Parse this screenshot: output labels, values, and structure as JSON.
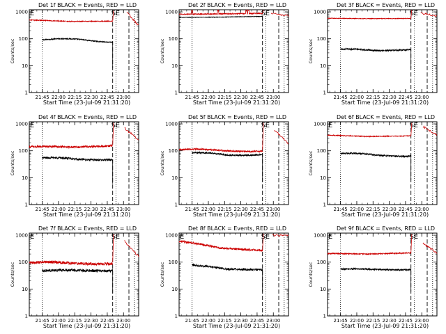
{
  "chart_data": [
    {
      "type": "line",
      "title": "Det 1f BLACK = Events, RED = LLD",
      "xlabel": "Start Time (23-Jul-09 21:31:20)",
      "ylabel": "Counts/sec",
      "xticks": [
        "21:45",
        "22:00",
        "22:15",
        "22:30",
        "22:45",
        "23:00"
      ],
      "yticks": [
        "1",
        "10",
        "100",
        "1000"
      ],
      "ylog": true,
      "ylim": [
        1,
        1200
      ],
      "xlim_minutes": [
        0,
        101
      ],
      "events": [
        {
          "label": "E",
          "t": 0
        },
        {
          "label": "S",
          "t": 75
        },
        {
          "label": "E",
          "t": 79
        }
      ],
      "dotted_lines": [
        12,
        80,
        97
      ],
      "dashed_lines": [
        77,
        92
      ],
      "series": [
        {
          "name": "Events",
          "color": "#000000",
          "t_range": [
            12,
            77
          ],
          "start": 90,
          "mid": 90,
          "end": 85,
          "noise": 0.02,
          "hump": 0.12,
          "drop_to": 8
        },
        {
          "name": "LLD",
          "color": "#cc0000",
          "t_range": [
            0,
            77
          ],
          "start": 500,
          "mid": 440,
          "end": 450,
          "noise": 0.015,
          "hump": 0.0,
          "spike": 1100,
          "tail": [
            90,
            101,
            1000,
            300
          ]
        }
      ]
    },
    {
      "type": "line",
      "title": "Det 2f BLACK = Events, RED = LLD",
      "xlabel": "Start Time (23-Jul-09 21:31:20)",
      "ylabel": "Counts/sec",
      "xticks": [
        "21:45",
        "22:00",
        "22:15",
        "22:30",
        "22:45",
        "23:00"
      ],
      "yticks": [
        "1",
        "10",
        "100",
        "1000"
      ],
      "ylog": true,
      "ylim": [
        1,
        1200
      ],
      "xlim_minutes": [
        0,
        101
      ],
      "events": [
        {
          "label": "S",
          "t": 75
        },
        {
          "label": "E",
          "t": 79
        }
      ],
      "dotted_lines": [
        12,
        80,
        97
      ],
      "dashed_lines": [
        77,
        92
      ],
      "series": [
        {
          "name": "Events",
          "color": "#000000",
          "t_range": [
            0,
            77
          ],
          "start": 620,
          "mid": 640,
          "end": 680,
          "noise": 0.01,
          "hump": 0.0,
          "drop_to": 450
        },
        {
          "name": "LLD",
          "color": "#cc0000",
          "t_range": [
            0,
            77
          ],
          "start": 820,
          "mid": 840,
          "end": 880,
          "noise": 0.02,
          "hump": 0.0,
          "spike": 1200,
          "tail": [
            85,
            101,
            900,
            700
          ],
          "bumps": [
            12,
            36,
            62,
            64
          ]
        }
      ]
    },
    {
      "type": "line",
      "title": "Det 3f BLACK = Events, RED = LLD",
      "xlabel": "Start Time (23-Jul-09 21:31:20)",
      "ylabel": "Counts/sec",
      "xticks": [
        "21:45",
        "22:00",
        "22:15",
        "22:30",
        "22:45",
        "23:00"
      ],
      "yticks": [
        "1",
        "10",
        "100",
        "1000"
      ],
      "ylog": true,
      "ylim": [
        1,
        1200
      ],
      "xlim_minutes": [
        0,
        101
      ],
      "events": [
        {
          "label": "S",
          "t": 75
        },
        {
          "label": "E",
          "t": 79
        }
      ],
      "dotted_lines": [
        12,
        80,
        97
      ],
      "dashed_lines": [
        77,
        92
      ],
      "series": [
        {
          "name": "Events",
          "color": "#000000",
          "t_range": [
            12,
            77
          ],
          "start": 42,
          "mid": 35,
          "end": 42,
          "noise": 0.03,
          "hump": 0.05,
          "drop_to": 8
        },
        {
          "name": "LLD",
          "color": "#cc0000",
          "t_range": [
            0,
            77
          ],
          "start": 580,
          "mid": 560,
          "end": 570,
          "noise": 0.01,
          "hump": 0.0,
          "spike": 1200,
          "tail": [
            86,
            101,
            900,
            700
          ]
        }
      ]
    },
    {
      "type": "line",
      "title": "Det 4f BLACK = Events, RED = LLD",
      "xlabel": "Start Time (23-Jul-09 21:31:20)",
      "ylabel": "Counts/sec",
      "xticks": [
        "21:45",
        "22:00",
        "22:15",
        "22:30",
        "22:45",
        "23:00"
      ],
      "yticks": [
        "1",
        "10",
        "100",
        "1000"
      ],
      "ylog": true,
      "ylim": [
        1,
        1200
      ],
      "xlim_minutes": [
        0,
        101
      ],
      "events": [
        {
          "label": "E",
          "t": 0
        },
        {
          "label": "S",
          "t": 75
        },
        {
          "label": "E",
          "t": 79
        }
      ],
      "dotted_lines": [
        12,
        80,
        97
      ],
      "dashed_lines": [
        77,
        92
      ],
      "series": [
        {
          "name": "Events",
          "color": "#000000",
          "t_range": [
            12,
            77
          ],
          "start": 55,
          "mid": 45,
          "end": 52,
          "noise": 0.04,
          "hump": 0.1,
          "drop_to": 6
        },
        {
          "name": "LLD",
          "color": "#cc0000",
          "t_range": [
            0,
            77
          ],
          "start": 140,
          "mid": 130,
          "end": 170,
          "noise": 0.04,
          "hump": 0.08,
          "spike": 1100,
          "tail": [
            88,
            101,
            700,
            250
          ]
        }
      ]
    },
    {
      "type": "line",
      "title": "Det 5f BLACK = Events, RED = LLD",
      "xlabel": "Start Time (23-Jul-09 21:31:20)",
      "ylabel": "Counts/sec",
      "xticks": [
        "21:45",
        "22:00",
        "22:15",
        "22:30",
        "22:45",
        "23:00"
      ],
      "yticks": [
        "1",
        "10",
        "100",
        "1000"
      ],
      "ylog": true,
      "ylim": [
        1,
        1200
      ],
      "xlim_minutes": [
        0,
        101
      ],
      "events": [
        {
          "label": "S",
          "t": 75
        },
        {
          "label": "E",
          "t": 79
        }
      ],
      "dotted_lines": [
        12,
        80,
        97
      ],
      "dashed_lines": [
        77,
        92
      ],
      "series": [
        {
          "name": "Events",
          "color": "#000000",
          "t_range": [
            12,
            77
          ],
          "start": 85,
          "mid": 65,
          "end": 80,
          "noise": 0.03,
          "hump": 0.1,
          "drop_to": 7
        },
        {
          "name": "LLD",
          "color": "#cc0000",
          "t_range": [
            0,
            77
          ],
          "start": 110,
          "mid": 95,
          "end": 110,
          "noise": 0.03,
          "hump": 0.12,
          "spike": 1100,
          "tail": [
            88,
            101,
            600,
            180
          ]
        }
      ]
    },
    {
      "type": "line",
      "title": "Det 6f BLACK = Events, RED = LLD",
      "xlabel": "Start Time (23-Jul-09 21:31:20)",
      "ylabel": "Counts/sec",
      "xticks": [
        "21:45",
        "22:00",
        "22:15",
        "22:30",
        "22:45",
        "23:00"
      ],
      "yticks": [
        "1",
        "10",
        "100",
        "1000"
      ],
      "ylog": true,
      "ylim": [
        1,
        1200
      ],
      "xlim_minutes": [
        0,
        101
      ],
      "events": [
        {
          "label": "E",
          "t": 0
        },
        {
          "label": "S",
          "t": 75
        },
        {
          "label": "E",
          "t": 79
        }
      ],
      "dotted_lines": [
        12,
        80,
        97
      ],
      "dashed_lines": [
        77,
        92
      ],
      "series": [
        {
          "name": "Events",
          "color": "#000000",
          "t_range": [
            12,
            77
          ],
          "start": 80,
          "mid": 65,
          "end": 70,
          "noise": 0.03,
          "hump": 0.1,
          "drop_to": 8
        },
        {
          "name": "LLD",
          "color": "#cc0000",
          "t_range": [
            0,
            77
          ],
          "start": 380,
          "mid": 340,
          "end": 360,
          "noise": 0.015,
          "hump": 0.0,
          "spike": 1100,
          "tail": [
            88,
            101,
            800,
            400
          ]
        }
      ]
    },
    {
      "type": "line",
      "title": "Det 7f BLACK = Events, RED = LLD",
      "xlabel": "Start Time (23-Jul-09 21:31:20)",
      "ylabel": "Counts/sec",
      "xticks": [
        "21:45",
        "22:00",
        "22:15",
        "22:30",
        "22:45",
        "23:00"
      ],
      "yticks": [
        "1",
        "10",
        "100",
        "1000"
      ],
      "ylog": true,
      "ylim": [
        1,
        1200
      ],
      "xlim_minutes": [
        0,
        101
      ],
      "events": [
        {
          "label": "E",
          "t": 0
        },
        {
          "label": "S",
          "t": 75
        },
        {
          "label": "E",
          "t": 79
        }
      ],
      "dotted_lines": [
        12,
        80,
        97
      ],
      "dashed_lines": [
        77,
        92
      ],
      "series": [
        {
          "name": "Events",
          "color": "#000000",
          "t_range": [
            12,
            77
          ],
          "start": 48,
          "mid": 48,
          "end": 50,
          "noise": 0.05,
          "hump": 0.05,
          "drop_to": 7
        },
        {
          "name": "LLD",
          "color": "#cc0000",
          "t_range": [
            0,
            77
          ],
          "start": 95,
          "mid": 85,
          "end": 100,
          "noise": 0.05,
          "hump": 0.12,
          "spike": 1100,
          "tail": [
            88,
            101,
            600,
            160
          ]
        }
      ]
    },
    {
      "type": "line",
      "title": "Det 8f BLACK = Events, RED = LLD",
      "xlabel": "Start Time (23-Jul-09 21:31:20)",
      "ylabel": "Counts/sec",
      "xticks": [
        "21:45",
        "22:00",
        "22:15",
        "22:30",
        "22:45",
        "23:00"
      ],
      "yticks": [
        "1",
        "10",
        "100",
        "1000"
      ],
      "ylog": true,
      "ylim": [
        1,
        1200
      ],
      "xlim_minutes": [
        0,
        101
      ],
      "events": [
        {
          "label": "E",
          "t": 0
        },
        {
          "label": "S",
          "t": 75
        },
        {
          "label": "E",
          "t": 79
        }
      ],
      "dotted_lines": [
        12,
        80,
        97
      ],
      "dashed_lines": [
        77,
        92
      ],
      "series": [
        {
          "name": "Events",
          "color": "#000000",
          "t_range": [
            12,
            77
          ],
          "start": 80,
          "mid": 55,
          "end": 52,
          "noise": 0.04,
          "hump": 0.0,
          "drop_to": 8
        },
        {
          "name": "LLD",
          "color": "#cc0000",
          "t_range": [
            0,
            77
          ],
          "start": 600,
          "mid": 330,
          "end": 270,
          "noise": 0.04,
          "hump": 0.0,
          "spike": 1150,
          "tail": [
            86,
            101,
            1000,
            1000
          ]
        }
      ]
    },
    {
      "type": "line",
      "title": "Det 9f BLACK = Events, RED = LLD",
      "xlabel": "Start Time (23-Jul-09 21:31:20)",
      "ylabel": "Counts/sec",
      "xticks": [
        "21:45",
        "22:00",
        "22:15",
        "22:30",
        "22:45",
        "23:00"
      ],
      "yticks": [
        "1",
        "10",
        "100",
        "1000"
      ],
      "ylog": true,
      "ylim": [
        1,
        1200
      ],
      "xlim_minutes": [
        0,
        101
      ],
      "events": [
        {
          "label": "E",
          "t": 0
        },
        {
          "label": "S",
          "t": 75
        },
        {
          "label": "E",
          "t": 79
        }
      ],
      "dotted_lines": [
        12,
        80,
        97
      ],
      "dashed_lines": [
        77,
        92
      ],
      "series": [
        {
          "name": "Events",
          "color": "#000000",
          "t_range": [
            12,
            77
          ],
          "start": 55,
          "mid": 52,
          "end": 55,
          "noise": 0.03,
          "hump": 0.05,
          "drop_to": 8
        },
        {
          "name": "LLD",
          "color": "#cc0000",
          "t_range": [
            0,
            77
          ],
          "start": 210,
          "mid": 200,
          "end": 220,
          "noise": 0.02,
          "hump": 0.0,
          "spike": 1100,
          "tail": [
            88,
            101,
            500,
            220
          ]
        }
      ]
    }
  ]
}
